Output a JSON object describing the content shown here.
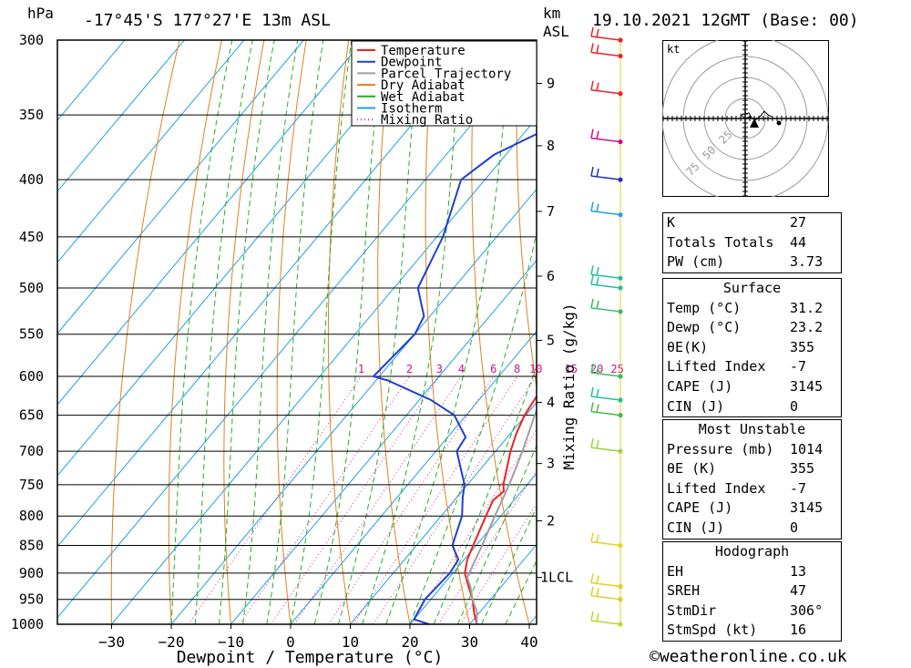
{
  "header": {
    "pressure_unit": "hPa",
    "location": "-17°45'S 177°27'E 13m ASL",
    "height_unit": "km",
    "height_ref": "ASL",
    "datetime": "19.10.2021 12GMT (Base: 00)"
  },
  "chart_data": {
    "type": "line",
    "title": "-17°45'S 177°27'E 13m ASL",
    "xlabel": "Dewpoint / Temperature (°C)",
    "ylabel": "hPa",
    "right_axis_label": "Mixing Ratio (g/kg)",
    "xlim": [
      -40,
      40
    ],
    "ylim": [
      1000,
      300
    ],
    "x_ticks": [
      "−30",
      "−20",
      "−10",
      "0",
      "10",
      "20",
      "30",
      "40"
    ],
    "pressure_levels": [
      300,
      350,
      400,
      450,
      500,
      550,
      600,
      650,
      700,
      750,
      800,
      850,
      900,
      950,
      1000
    ],
    "height_ticks": [
      {
        "label": "9",
        "p": 328
      },
      {
        "label": "8",
        "p": 373
      },
      {
        "label": "7",
        "p": 427
      },
      {
        "label": "6",
        "p": 488
      },
      {
        "label": "5",
        "p": 557
      },
      {
        "label": "4",
        "p": 633
      },
      {
        "label": "3",
        "p": 718
      },
      {
        "label": "2",
        "p": 808
      },
      {
        "label": "1LCL",
        "p": 908
      }
    ],
    "mixing_ratio_labels": [
      "1",
      "2",
      "3",
      "4",
      "6",
      "8",
      "10",
      "15",
      "20",
      "25"
    ],
    "mixing_ratio_values": [
      1,
      2,
      3,
      4,
      6,
      8,
      10,
      15,
      20,
      25
    ],
    "legend": {
      "position": "top-right of plot",
      "entries": [
        {
          "name": "Temperature",
          "color": "#ee2222",
          "style": "solid"
        },
        {
          "name": "Dewpoint",
          "color": "#1f3fd0",
          "style": "solid"
        },
        {
          "name": "Parcel Trajectory",
          "color": "#a0a0a0",
          "style": "solid"
        },
        {
          "name": "Dry Adiabat",
          "color": "#e08020",
          "style": "solid"
        },
        {
          "name": "Wet Adiabat",
          "color": "#20b020",
          "style": "solid"
        },
        {
          "name": "Isotherm",
          "color": "#20a0e0",
          "style": "solid"
        },
        {
          "name": "Mixing Ratio",
          "color": "#e020a0",
          "style": "dotted"
        }
      ]
    },
    "series": [
      {
        "name": "Temperature",
        "color": "#ee2222",
        "points": [
          [
            1000,
            31.2
          ],
          [
            975,
            29.0
          ],
          [
            950,
            27.0
          ],
          [
            925,
            24.5
          ],
          [
            900,
            22.0
          ],
          [
            875,
            20.5
          ],
          [
            850,
            19.5
          ],
          [
            800,
            17.5
          ],
          [
            775,
            16.5
          ],
          [
            760,
            17.0
          ],
          [
            750,
            16.0
          ],
          [
            700,
            12.5
          ],
          [
            675,
            11.0
          ],
          [
            650,
            9.8
          ],
          [
            600,
            8.5
          ],
          [
            575,
            8.0
          ],
          [
            550,
            5.5
          ],
          [
            500,
            1.0
          ],
          [
            450,
            -4.5
          ],
          [
            400,
            -10.5
          ],
          [
            380,
            -13.0
          ],
          [
            350,
            -17.0
          ],
          [
            330,
            -20.5
          ],
          [
            310,
            -24.5
          ],
          [
            300,
            -26.5
          ]
        ]
      },
      {
        "name": "Dewpoint",
        "color": "#1f3fd0",
        "points": [
          [
            1000,
            23.2
          ],
          [
            990,
            20.0
          ],
          [
            950,
            19.0
          ],
          [
            900,
            19.5
          ],
          [
            875,
            19.0
          ],
          [
            850,
            16.0
          ],
          [
            800,
            13.5
          ],
          [
            770,
            11.0
          ],
          [
            750,
            9.5
          ],
          [
            700,
            3.5
          ],
          [
            680,
            3.0
          ],
          [
            650,
            -2.0
          ],
          [
            630,
            -8.0
          ],
          [
            605,
            -18.0
          ],
          [
            600,
            -21.0
          ],
          [
            550,
            -20.0
          ],
          [
            530,
            -21.0
          ],
          [
            500,
            -26.0
          ],
          [
            450,
            -29.0
          ],
          [
            400,
            -34.0
          ],
          [
            380,
            -32.0
          ],
          [
            365,
            -28.0
          ],
          [
            350,
            -24.0
          ],
          [
            340,
            -22.0
          ],
          [
            330,
            -30.0
          ],
          [
            325,
            -40.0
          ],
          [
            318,
            -42.0
          ],
          [
            312,
            -35.0
          ],
          [
            310,
            -32.0
          ],
          [
            306,
            -43.0
          ],
          [
            305,
            -51.0
          ],
          [
            302,
            -52.0
          ],
          [
            300,
            -68.0
          ]
        ]
      },
      {
        "name": "Parcel Trajectory",
        "color": "#a0a0a0",
        "points": [
          [
            1000,
            31.2
          ],
          [
            975,
            29.5
          ],
          [
            950,
            27.0
          ],
          [
            925,
            24.8
          ],
          [
            908,
            23.0
          ],
          [
            850,
            21.0
          ],
          [
            800,
            19.0
          ],
          [
            750,
            17.0
          ],
          [
            700,
            14.5
          ],
          [
            650,
            11.5
          ],
          [
            600,
            8.5
          ],
          [
            550,
            5.0
          ],
          [
            500,
            1.0
          ],
          [
            450,
            -4.0
          ],
          [
            400,
            -10.0
          ],
          [
            375,
            -14.0
          ]
        ]
      }
    ],
    "wind_barbs": [
      {
        "p": 1000,
        "color": "#bada22"
      },
      {
        "p": 950,
        "color": "#d8d020"
      },
      {
        "p": 925,
        "color": "#e0d020"
      },
      {
        "p": 850,
        "color": "#e8d020"
      },
      {
        "p": 700,
        "color": "#a0d040"
      },
      {
        "p": 650,
        "color": "#40c040"
      },
      {
        "p": 630,
        "color": "#20c0a0"
      },
      {
        "p": 600,
        "color": "#30c060"
      },
      {
        "p": 525,
        "color": "#30c060"
      },
      {
        "p": 500,
        "color": "#20c0a0"
      },
      {
        "p": 490,
        "color": "#20c0a0"
      },
      {
        "p": 430,
        "color": "#20a0e0"
      },
      {
        "p": 400,
        "color": "#2030c0"
      },
      {
        "p": 370,
        "color": "#d0108a"
      },
      {
        "p": 335,
        "color": "#ee2222"
      },
      {
        "p": 310,
        "color": "#ee2222"
      },
      {
        "p": 300,
        "color": "#ee2222"
      }
    ]
  },
  "hodograph": {
    "unit_label": "kt",
    "ring_labels": [
      "25",
      "50",
      "75"
    ]
  },
  "stats_indices": [
    {
      "label": "K",
      "value": "27"
    },
    {
      "label": "Totals Totals",
      "value": "44"
    },
    {
      "label": "PW (cm)",
      "value": "3.73"
    }
  ],
  "stats_surface": {
    "title": "Surface",
    "rows": [
      {
        "label": "Temp (°C)",
        "value": "31.2"
      },
      {
        "label": "Dewp (°C)",
        "value": "23.2"
      },
      {
        "label": "θE(K)",
        "value": "355"
      },
      {
        "label": "Lifted Index",
        "value": "-7"
      },
      {
        "label": "CAPE (J)",
        "value": "3145"
      },
      {
        "label": "CIN (J)",
        "value": "0"
      }
    ]
  },
  "stats_unstable": {
    "title": "Most Unstable",
    "rows": [
      {
        "label": "Pressure (mb)",
        "value": "1014"
      },
      {
        "label": "θE (K)",
        "value": "355"
      },
      {
        "label": "Lifted Index",
        "value": "-7"
      },
      {
        "label": "CAPE (J)",
        "value": "3145"
      },
      {
        "label": "CIN (J)",
        "value": "0"
      }
    ]
  },
  "stats_hodograph": {
    "title": "Hodograph",
    "rows": [
      {
        "label": "EH",
        "value": "13"
      },
      {
        "label": "SREH",
        "value": "47"
      },
      {
        "label": "StmDir",
        "value": "306°"
      },
      {
        "label": "StmSpd (kt)",
        "value": "16"
      }
    ]
  },
  "footer": "©weatheronline.co.uk"
}
